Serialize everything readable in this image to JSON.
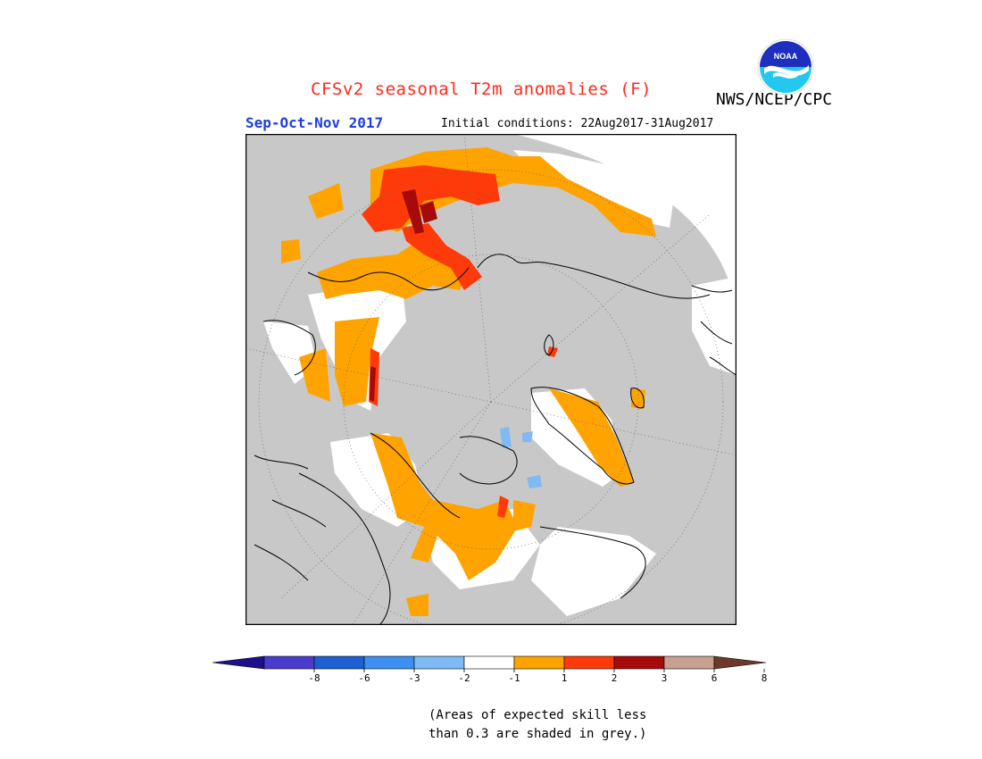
{
  "header": {
    "title": "CFSv2 seasonal T2m anomalies (F)",
    "organization": "NWS/NCEP/CPC",
    "logo_text": "NOAA",
    "season": "Sep-Oct-Nov 2017",
    "initial_conditions": "Initial conditions: 22Aug2017-31Aug2017"
  },
  "map": {
    "projection": "north-polar-stereographic",
    "grey_shading_meaning": "expected skill less than 0.3",
    "colors": {
      "ocean_grey": "#c8c8c8",
      "land_no_signal": "#ffffff",
      "coast": "#000000"
    }
  },
  "legend": {
    "ticks": [
      "-8",
      "-6",
      "-3",
      "-2",
      "-1",
      "1",
      "2",
      "3",
      "6",
      "8"
    ],
    "bins": [
      {
        "range": "< -8",
        "color": "#1e0f8c"
      },
      {
        "range": "-8 to -6",
        "color": "#4a3ccc"
      },
      {
        "range": "-6 to -3",
        "color": "#1f5fd4"
      },
      {
        "range": "-3 to -2",
        "color": "#3d8ff0"
      },
      {
        "range": "-2 to -1",
        "color": "#7fbaf2"
      },
      {
        "range": "-1 to 1",
        "color": "#ffffff"
      },
      {
        "range": "1 to 2",
        "color": "#ffa300"
      },
      {
        "range": "2 to 3",
        "color": "#ff3a0a"
      },
      {
        "range": "3 to 6",
        "color": "#a60a0a"
      },
      {
        "range": "6 to 8",
        "color": "#c8a090"
      },
      {
        "range": "> 8",
        "color": "#6b3a2a"
      }
    ]
  },
  "note": {
    "line1": "(Areas of expected skill less",
    "line2": "than 0.3 are shaded in grey.)"
  }
}
